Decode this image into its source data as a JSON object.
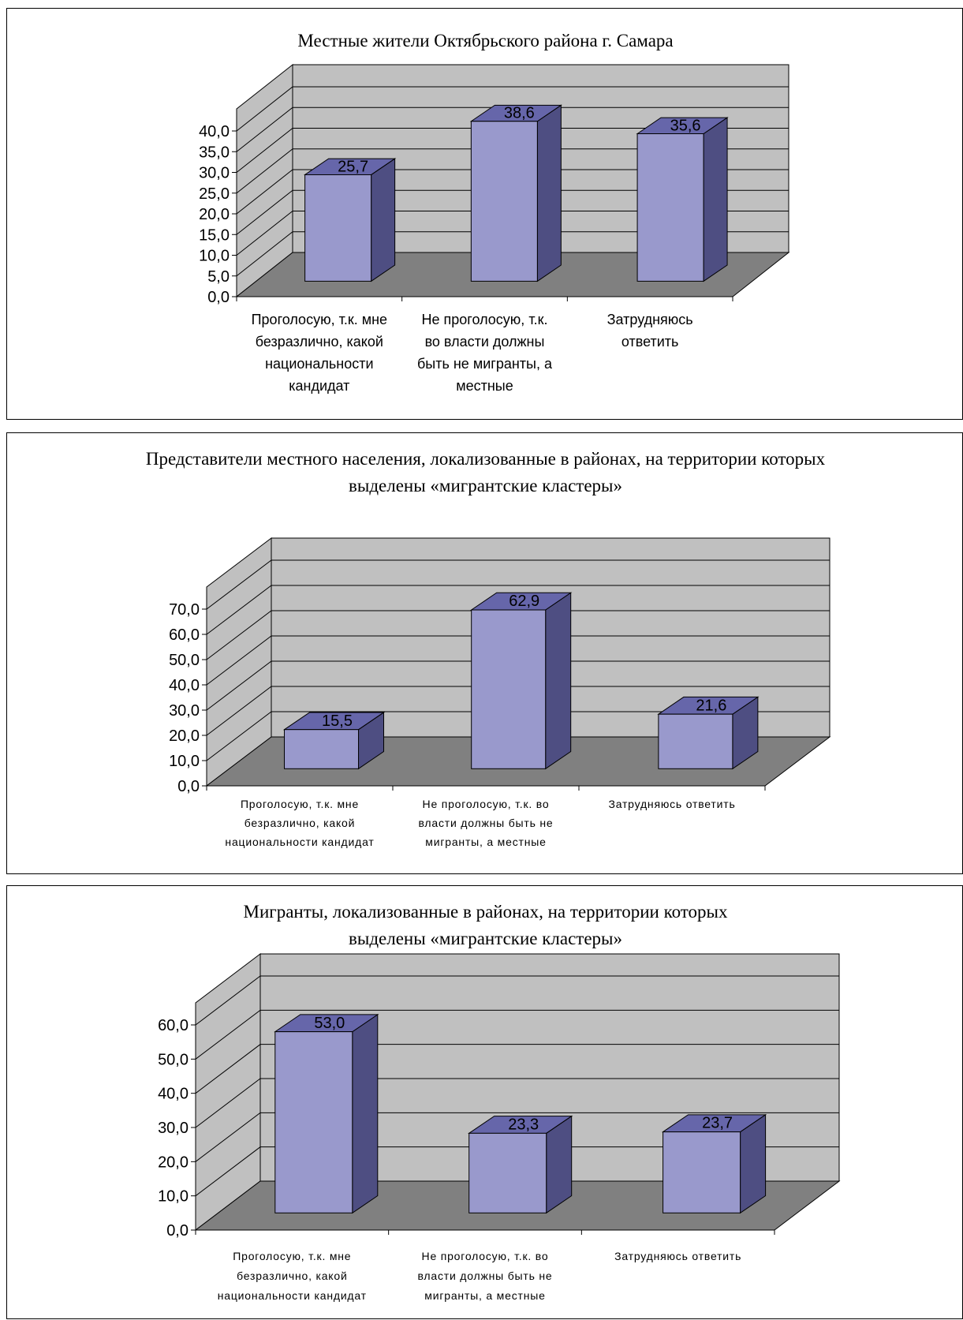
{
  "colors": {
    "bar_front": "#9999cc",
    "bar_top": "#6666aa",
    "bar_side": "#4e4e82",
    "wall": "#c0c0c0",
    "floor": "#808080"
  },
  "chart_data": [
    {
      "type": "bar",
      "title": "Местные жители Октябрьского района г. Самара",
      "categories": [
        [
          "Проголосую, т.к. мне",
          "безразлично, какой",
          "национальности",
          "кандидат"
        ],
        [
          "Не проголосую, т.к.",
          "во власти должны",
          "быть не мигранты, а",
          "местные"
        ],
        [
          "Затрудняюсь",
          "ответить"
        ]
      ],
      "values": [
        25.7,
        38.6,
        35.6
      ],
      "value_labels": [
        "25,7",
        "38,6",
        "35,6"
      ],
      "yticks": [
        "0,0",
        "5,0",
        "10,0",
        "15,0",
        "20,0",
        "25,0",
        "30,0",
        "35,0",
        "40,0"
      ],
      "ylim": [
        0,
        40
      ],
      "grid": true,
      "legend": "none"
    },
    {
      "type": "bar",
      "title": "Представители местного населения, локализованные в районах, на территории которых выделены «мигрантские кластеры»",
      "title_lines": [
        "Представители местного населения, локализованные в районах, на территории которых",
        "выделены «мигрантские кластеры»"
      ],
      "categories": [
        [
          "Проголосую, т.к. мне",
          "безразлично, какой",
          "национальности кандидат"
        ],
        [
          "Не проголосую, т.к. во",
          "власти должны быть не",
          "мигранты, а местные"
        ],
        [
          "Затрудняюсь ответить"
        ]
      ],
      "values": [
        15.5,
        62.9,
        21.6
      ],
      "value_labels": [
        "15,5",
        "62,9",
        "21,6"
      ],
      "yticks": [
        "0,0",
        "10,0",
        "20,0",
        "30,0",
        "40,0",
        "50,0",
        "60,0",
        "70,0"
      ],
      "ylim": [
        0,
        70
      ],
      "grid": true,
      "legend": "none"
    },
    {
      "type": "bar",
      "title": "Мигранты, локализованные в районах, на территории которых выделены «мигрантские кластеры»",
      "title_lines": [
        "Мигранты, локализованные в районах, на территории которых",
        "выделены «мигрантские кластеры»"
      ],
      "categories": [
        [
          "Проголосую, т.к. мне",
          "безразлично, какой",
          "национальности кандидат"
        ],
        [
          "Не проголосую, т.к. во",
          "власти должны быть не",
          "мигранты, а местные"
        ],
        [
          "Затрудняюсь ответить"
        ]
      ],
      "values": [
        53.0,
        23.3,
        23.7
      ],
      "value_labels": [
        "53,0",
        "23,3",
        "23,7"
      ],
      "yticks": [
        "0,0",
        "10,0",
        "20,0",
        "30,0",
        "40,0",
        "50,0",
        "60,0"
      ],
      "ylim": [
        0,
        60
      ],
      "grid": true,
      "legend": "none"
    }
  ]
}
